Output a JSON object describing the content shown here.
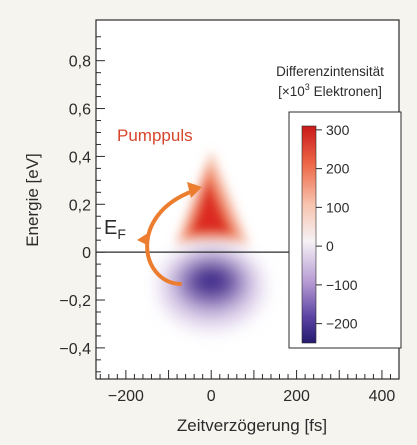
{
  "chart_data": {
    "type": "heatmap",
    "xlabel": "Zeitverzögerung [fs]",
    "ylabel": "Energie [eV]",
    "xlim": [
      -270,
      440
    ],
    "ylim": [
      -0.53,
      0.97
    ],
    "x_ticks": [
      -200,
      0,
      200,
      400
    ],
    "x_tick_labels": [
      "−200",
      "0",
      "200",
      "400"
    ],
    "y_ticks": [
      -0.4,
      -0.2,
      0,
      0.2,
      0.4,
      0.6,
      0.8
    ],
    "y_tick_labels": [
      "−0,4",
      "−0,2",
      "0",
      "0,2",
      "0,4",
      "0,6",
      "0,8"
    ],
    "fermi_level_energy": 0,
    "fermi_level_label": "E",
    "fermi_level_label_sub": "F",
    "annotation": "Pumppuls",
    "colorbar": {
      "title_line1": "Differenzintensität",
      "title_line2_prefix": "[×10",
      "title_line2_sup": "3",
      "title_line2_suffix": " Elektronen]",
      "range": [
        -250,
        310
      ],
      "ticks": [
        300,
        200,
        100,
        0,
        -100,
        -200
      ],
      "tick_labels": [
        "300",
        "200",
        "100",
        "0",
        "−100",
        "−200"
      ],
      "colors": {
        "positive": "#cc1f1f",
        "mid": "#f2eef2",
        "negative": "#2a1e78"
      }
    },
    "features": [
      {
        "name": "excited-electrons",
        "delay_center_fs": 0,
        "energy_center_eV": 0.15,
        "peak_value": 300
      },
      {
        "name": "holes",
        "delay_center_fs": 0,
        "energy_center_eV": -0.12,
        "peak_value": -250
      }
    ],
    "grid": false
  }
}
